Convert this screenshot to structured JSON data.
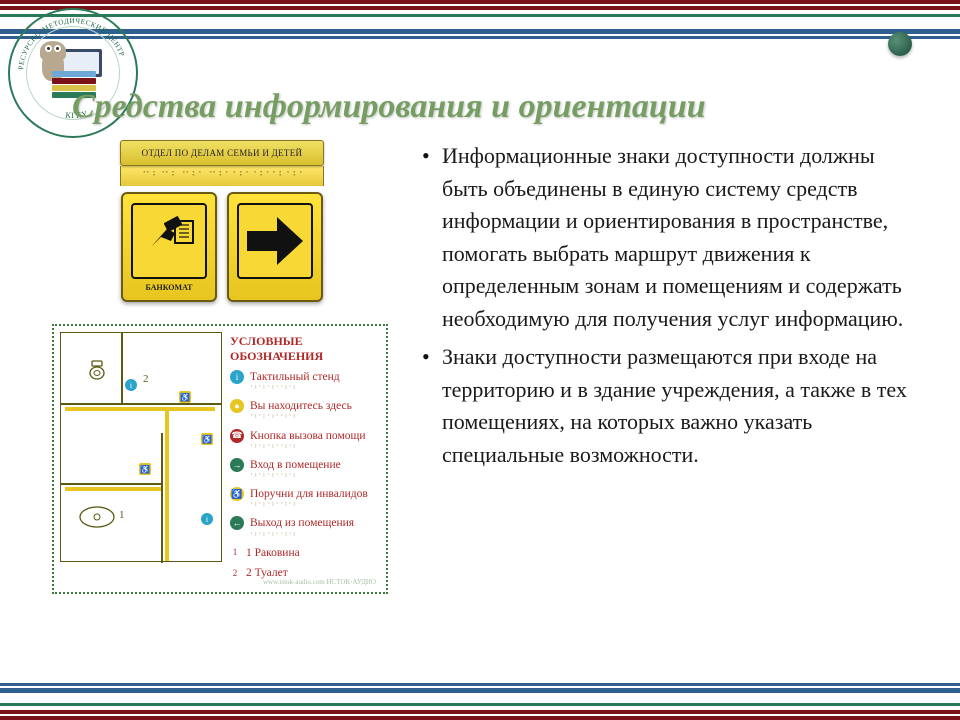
{
  "stripes": {
    "top": [
      {
        "c": "#7a1018",
        "h": 4
      },
      {
        "c": "#ffffff",
        "h": 2
      },
      {
        "c": "#7a1018",
        "h": 4
      },
      {
        "c": "#ffffff",
        "h": 4
      },
      {
        "c": "#2a7a58",
        "h": 3
      },
      {
        "c": "#ffffff",
        "h": 12
      },
      {
        "c": "#2f5f8f",
        "h": 5
      },
      {
        "c": "#ffffff",
        "h": 2
      },
      {
        "c": "#2f5f8f",
        "h": 3
      }
    ],
    "bottom": [
      {
        "c": "#2f5f8f",
        "h": 3
      },
      {
        "c": "#ffffff",
        "h": 2
      },
      {
        "c": "#2f5f8f",
        "h": 5
      },
      {
        "c": "#ffffff",
        "h": 10
      },
      {
        "c": "#2a7a58",
        "h": 3
      },
      {
        "c": "#ffffff",
        "h": 4
      },
      {
        "c": "#7a1018",
        "h": 4
      },
      {
        "c": "#ffffff",
        "h": 2
      },
      {
        "c": "#7a1018",
        "h": 4
      }
    ]
  },
  "logo": {
    "arc_top": "РЕСУРСНО-МЕТОДИЧЕСКИЙ ЦЕНТР",
    "arc_bottom": "КГКУ",
    "book_colors": [
      "#6da8d6",
      "#7a1018",
      "#d8c24a",
      "#2a7a58"
    ]
  },
  "title": "Средства информирования и ориентации",
  "signs": {
    "header": "ОТДЕЛ ПО ДЕЛАМ СЕМЬИ И ДЕТЕЙ",
    "braille": "⠈⠁⠃⠈⠁⠃ ⠈⠁⠃⠁ ⠈⠁⠃⠁ ⠁⠃⠁ ⠁⠃⠁⠁⠃ ⠁⠃⠁",
    "left_caption": "БАНКОМАТ"
  },
  "floorplan": {
    "heading": "УСЛОВНЫЕ ОБОЗНАЧЕНИЯ",
    "items": [
      {
        "icon_bg": "#2aa5c9",
        "icon_txt": "i",
        "label": "Тактильный стенд"
      },
      {
        "icon_bg": "#e8c520",
        "icon_txt": "●",
        "label": "Вы находитесь здесь"
      },
      {
        "icon_bg": "#b02828",
        "icon_txt": "☎",
        "label": "Кнопка вызова помощи"
      },
      {
        "icon_bg": "#2a7a58",
        "icon_txt": "→",
        "label": "Вход в помещение"
      },
      {
        "icon_bg": "#e8c520",
        "icon_txt": "♿",
        "label": "Поручни для инвалидов"
      },
      {
        "icon_bg": "#2a7a58",
        "icon_txt": "←",
        "label": "Выход из помещения"
      },
      {
        "icon_bg": "#ffffff",
        "icon_txt": "1",
        "label": "1 Раковина"
      },
      {
        "icon_bg": "#ffffff",
        "icon_txt": "2",
        "label": "2 Туалет"
      }
    ],
    "watermark": "www.istok-audio.com  ИСТОК·АУДИО"
  },
  "bullets": [
    "Информационные знаки доступности должны быть объединены в единую систему средств информации и ориентирования в пространстве, помогать выбрать маршрут движения к определенным зонам и помещениям и содержать необходимую для получения услуг информацию.",
    "Знаки доступности размещаются при входе на территорию и в здание учреждения, а также в тех помещениях, на которых важно указать специальные возможности."
  ],
  "colors": {
    "title": "#769e62",
    "yellow": "#e8c520",
    "red": "#b02828",
    "olive": "#5b5b14"
  }
}
